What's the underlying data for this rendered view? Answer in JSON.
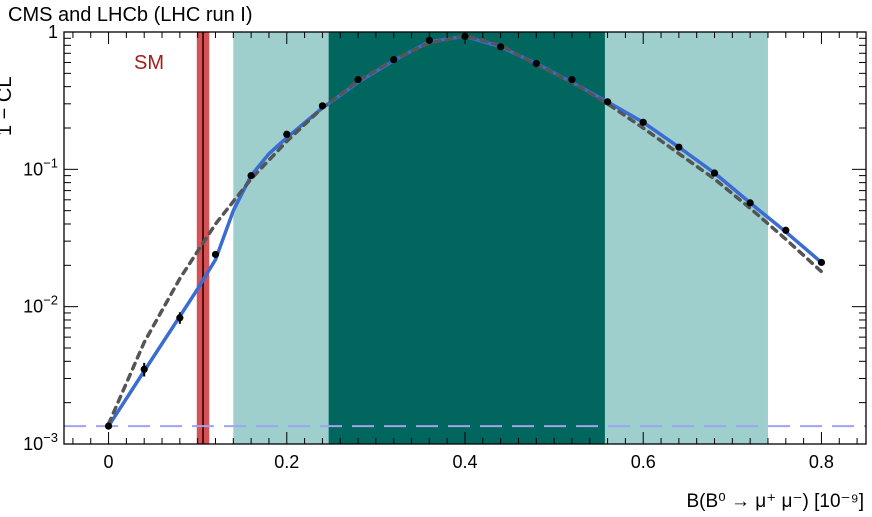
{
  "chart_data": {
    "type": "line",
    "title": "CMS and LHCb (LHC run I)",
    "xlabel": "B(B⁰ → μ⁺ μ⁻) [10⁻⁹]",
    "ylabel": "1 − CL",
    "xlim": [
      -0.05,
      0.85
    ],
    "ylim": [
      0.001,
      1
    ],
    "yscale": "log",
    "x_ticks": [
      0,
      0.2,
      0.4,
      0.6,
      0.8
    ],
    "x_tick_labels": [
      "0",
      "0.2",
      "0.4",
      "0.6",
      "0.8"
    ],
    "y_ticks": [
      0.001,
      0.01,
      0.1,
      1
    ],
    "y_tick_labels": [
      {
        "base": "10",
        "exp": "−3"
      },
      {
        "base": "10",
        "exp": "−2"
      },
      {
        "base": "10",
        "exp": "−1"
      },
      {
        "base": "1",
        "exp": ""
      }
    ],
    "sm_label": "SM",
    "sm_band": {
      "center": 0.106,
      "low": 0.099,
      "high": 0.113,
      "color": "#c9282d"
    },
    "bands": [
      {
        "low": 0.14,
        "high": 0.74,
        "color": "#9ecfcd"
      },
      {
        "low": 0.247,
        "high": 0.557,
        "color": "#00665e"
      }
    ],
    "points": {
      "x": [
        0,
        0.04,
        0.08,
        0.12,
        0.16,
        0.2,
        0.24,
        0.28,
        0.32,
        0.36,
        0.4,
        0.44,
        0.48,
        0.52,
        0.56,
        0.6,
        0.64,
        0.68,
        0.72,
        0.76,
        0.8
      ],
      "y": [
        0.00135,
        0.0035,
        0.0083,
        0.024,
        0.09,
        0.18,
        0.29,
        0.45,
        0.63,
        0.87,
        0.93,
        0.78,
        0.59,
        0.45,
        0.31,
        0.22,
        0.145,
        0.094,
        0.057,
        0.036,
        0.021
      ],
      "yerr": [
        0,
        0.0004,
        0.0008,
        0,
        0,
        0,
        0,
        0,
        0,
        0,
        0,
        0,
        0,
        0,
        0,
        0,
        0,
        0,
        0,
        0,
        0
      ]
    },
    "series": [
      {
        "style": "solid",
        "color": "#3a6cd1",
        "x": [
          0,
          0.04,
          0.08,
          0.1,
          0.12,
          0.14,
          0.16,
          0.18,
          0.2,
          0.24,
          0.28,
          0.32,
          0.36,
          0.4,
          0.44,
          0.48,
          0.52,
          0.56,
          0.6,
          0.64,
          0.68,
          0.72,
          0.76,
          0.8
        ],
        "y": [
          0.00135,
          0.0034,
          0.0085,
          0.0135,
          0.022,
          0.05,
          0.09,
          0.13,
          0.17,
          0.28,
          0.43,
          0.62,
          0.85,
          0.93,
          0.78,
          0.59,
          0.43,
          0.31,
          0.22,
          0.145,
          0.094,
          0.057,
          0.035,
          0.021
        ]
      },
      {
        "style": "dashed",
        "color": "#555555",
        "x": [
          0,
          0.04,
          0.08,
          0.12,
          0.16,
          0.2,
          0.24,
          0.28,
          0.32,
          0.36,
          0.4,
          0.44,
          0.48,
          0.52,
          0.56,
          0.6,
          0.64,
          0.68,
          0.72,
          0.76,
          0.8
        ],
        "y": [
          0.0014,
          0.0055,
          0.016,
          0.04,
          0.085,
          0.16,
          0.28,
          0.44,
          0.63,
          0.83,
          0.94,
          0.8,
          0.58,
          0.43,
          0.3,
          0.2,
          0.13,
          0.085,
          0.052,
          0.031,
          0.018
        ]
      }
    ],
    "reference_line": {
      "y": 0.00135,
      "style": "dashed",
      "color": "#a0a4f0"
    },
    "grid": false
  }
}
